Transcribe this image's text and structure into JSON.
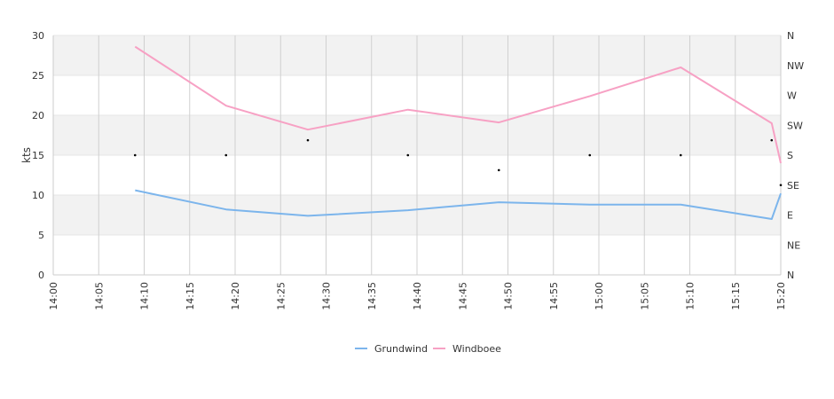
{
  "chart_data": {
    "type": "line",
    "ylabel": "kts",
    "ylim": [
      0,
      30
    ],
    "yticks": [
      "0",
      "5",
      "10",
      "15",
      "20",
      "25",
      "30"
    ],
    "xlim": [
      "14:00",
      "15:20"
    ],
    "xticks": [
      "14:00",
      "14:05",
      "14:10",
      "14:15",
      "14:20",
      "14:25",
      "14:30",
      "14:35",
      "14:40",
      "14:45",
      "14:50",
      "14:55",
      "15:00",
      "15:05",
      "15:10",
      "15:15",
      "15:20"
    ],
    "right_axis_labels": [
      "N",
      "NE",
      "E",
      "SE",
      "S",
      "SW",
      "W",
      "NW",
      "N"
    ],
    "grid": true,
    "legend_position": "bottom-center",
    "series": [
      {
        "name": "Grundwind",
        "color": "#7cb5ec",
        "x": [
          "14:09",
          "14:19",
          "14:28",
          "14:39",
          "14:49",
          "14:59",
          "15:09",
          "15:19",
          "15:20"
        ],
        "values": [
          10.6,
          8.2,
          7.4,
          8.1,
          9.1,
          8.8,
          8.8,
          7.0,
          10.2
        ]
      },
      {
        "name": "Windboee",
        "color": "#f7a1c4",
        "x": [
          "14:09",
          "14:19",
          "14:28",
          "14:39",
          "14:49",
          "14:59",
          "15:09",
          "15:19",
          "15:20"
        ],
        "values": [
          28.6,
          21.2,
          18.2,
          20.7,
          19.1,
          22.4,
          26.0,
          19.0,
          14.0
        ]
      }
    ],
    "direction_markers": {
      "x": [
        "14:09",
        "14:19",
        "14:28",
        "14:39",
        "14:49",
        "14:59",
        "15:09",
        "15:19",
        "15:20"
      ],
      "values": [
        "S",
        "S",
        "SSW",
        "S",
        "SSE",
        "S",
        "S",
        "SSW",
        "SE"
      ]
    }
  }
}
